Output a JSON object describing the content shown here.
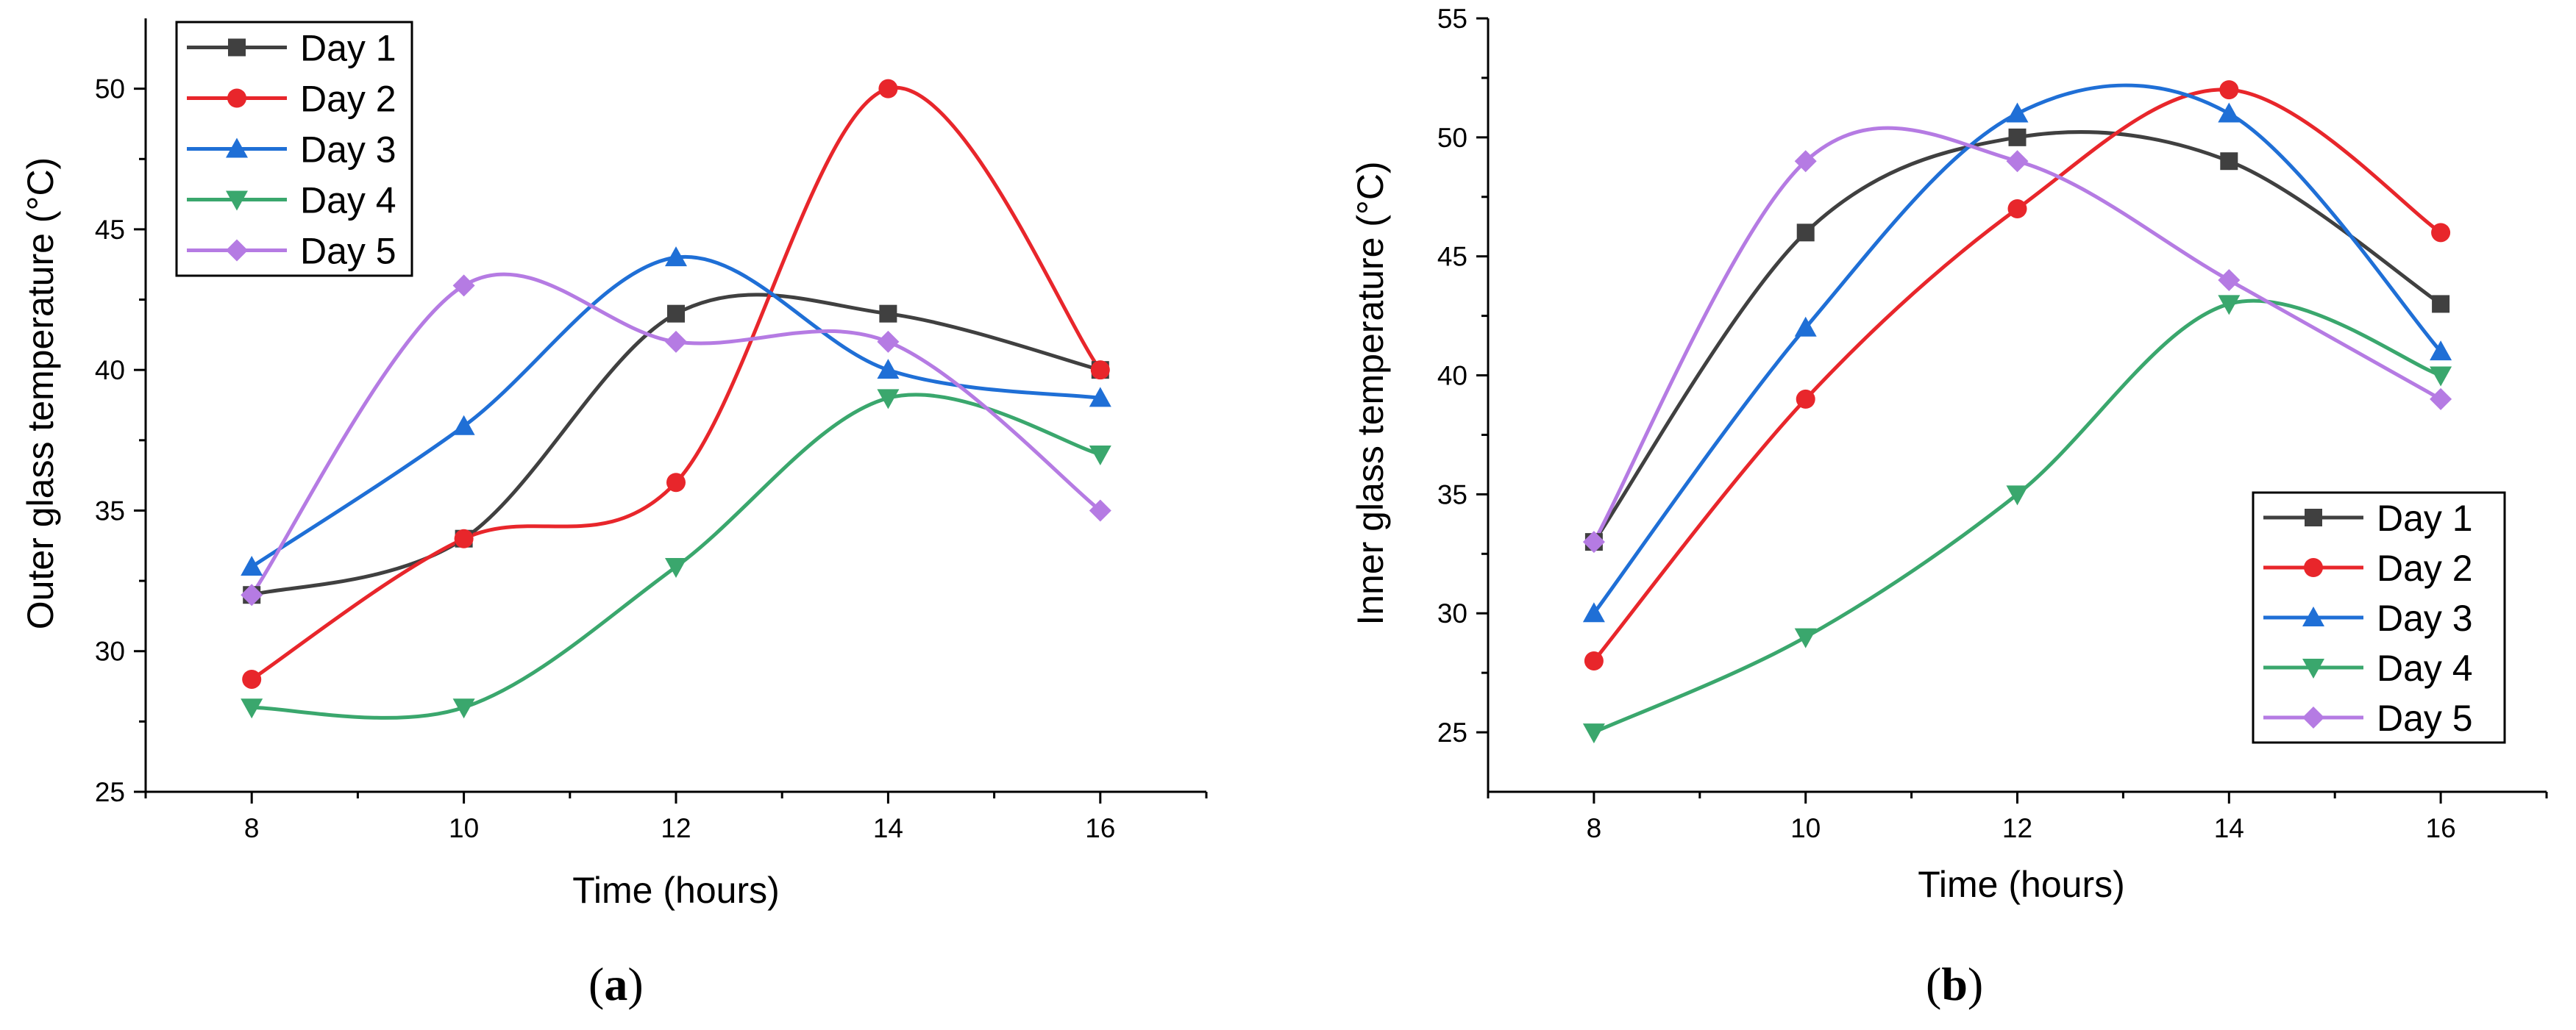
{
  "chart_data": [
    {
      "type": "line",
      "panel": "a",
      "caption": "a",
      "xlabel": "Time (hours)",
      "ylabel": "Outer glass temperature (°C)",
      "x": [
        8,
        10,
        12,
        14,
        16
      ],
      "xlim": [
        7,
        17
      ],
      "ylim": [
        25,
        52.5
      ],
      "xticks": [
        8,
        10,
        12,
        14,
        16
      ],
      "yticks": [
        25,
        30,
        35,
        40,
        45,
        50
      ],
      "legend_position": "top-left",
      "series": [
        {
          "name": "Day 1",
          "color": "#404040",
          "marker": "square",
          "values": [
            32,
            34,
            42,
            42,
            40
          ]
        },
        {
          "name": "Day 2",
          "color": "#e8262b",
          "marker": "circle",
          "values": [
            29,
            34,
            36,
            50,
            40
          ]
        },
        {
          "name": "Day 3",
          "color": "#1f6fd6",
          "marker": "triangle-up",
          "values": [
            33,
            38,
            44,
            40,
            39
          ]
        },
        {
          "name": "Day 4",
          "color": "#3aa76d",
          "marker": "triangle-down",
          "values": [
            28,
            28,
            33,
            39,
            37
          ]
        },
        {
          "name": "Day 5",
          "color": "#b57be3",
          "marker": "diamond",
          "values": [
            32,
            43,
            41,
            41,
            35
          ]
        }
      ]
    },
    {
      "type": "line",
      "panel": "b",
      "caption": "b",
      "xlabel": "Time (hours)",
      "ylabel": "Inner glass temperature (°C)",
      "x": [
        8,
        10,
        12,
        14,
        16
      ],
      "xlim": [
        7,
        17
      ],
      "ylim": [
        22.5,
        55
      ],
      "xticks": [
        8,
        10,
        12,
        14,
        16
      ],
      "yticks": [
        25,
        30,
        35,
        40,
        45,
        50,
        55
      ],
      "legend_position": "bottom-right",
      "series": [
        {
          "name": "Day 1",
          "color": "#404040",
          "marker": "square",
          "values": [
            33,
            46,
            50,
            49,
            43
          ]
        },
        {
          "name": "Day 2",
          "color": "#e8262b",
          "marker": "circle",
          "values": [
            28,
            39,
            47,
            52,
            46
          ]
        },
        {
          "name": "Day 3",
          "color": "#1f6fd6",
          "marker": "triangle-up",
          "values": [
            30,
            42,
            51,
            51,
            41
          ]
        },
        {
          "name": "Day 4",
          "color": "#3aa76d",
          "marker": "triangle-down",
          "values": [
            25,
            29,
            35,
            43,
            40
          ]
        },
        {
          "name": "Day 5",
          "color": "#b57be3",
          "marker": "diamond",
          "values": [
            33,
            49,
            49,
            44,
            39
          ]
        }
      ]
    }
  ]
}
